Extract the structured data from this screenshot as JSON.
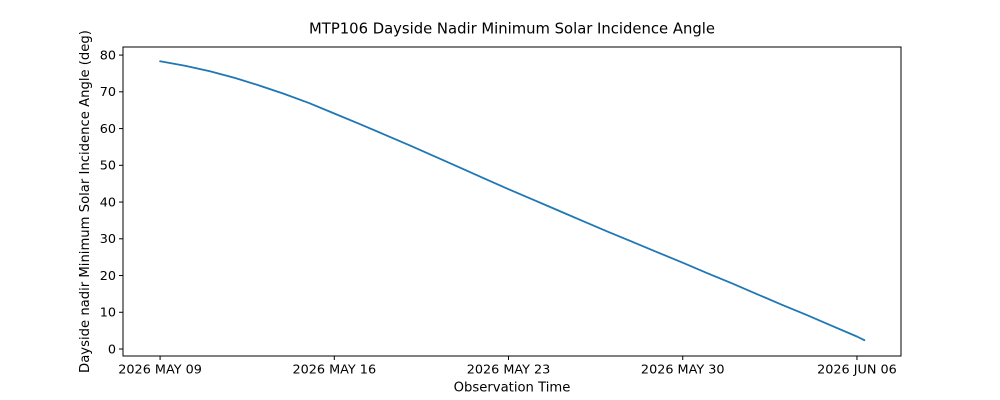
{
  "figure": {
    "background": "#ffffff"
  },
  "chart_data": {
    "type": "line",
    "title": "MTP106 Dayside Nadir Minimum Solar Incidence Angle",
    "xlabel": "Observation Time",
    "ylabel": "Dayside nadir Minimum Solar Incidence Angle (deg)",
    "x_tick_labels": [
      "2026 MAY 09",
      "2026 MAY 16",
      "2026 MAY 23",
      "2026 MAY 30",
      "2026 JUN 06"
    ],
    "x_tick_days": [
      0,
      7,
      14,
      21,
      28
    ],
    "y_ticks": [
      0,
      10,
      20,
      30,
      40,
      50,
      60,
      70,
      80
    ],
    "xlim_days": [
      -1.49,
      29.77
    ],
    "ylim": [
      -1.9,
      82.2
    ],
    "grid": false,
    "legend": false,
    "line_color": "#1f77b4",
    "axis_color": "#000000",
    "series": [
      {
        "points": [
          [
            0,
            78.3
          ],
          [
            1,
            77.1
          ],
          [
            2,
            75.6
          ],
          [
            3,
            73.8
          ],
          [
            4,
            71.7
          ],
          [
            5,
            69.4
          ],
          [
            6,
            66.9
          ],
          [
            7,
            64.1
          ],
          [
            8,
            61.3
          ],
          [
            9,
            58.4
          ],
          [
            10,
            55.5
          ],
          [
            11,
            52.5
          ],
          [
            12,
            49.5
          ],
          [
            13,
            46.5
          ],
          [
            14,
            43.5
          ],
          [
            15,
            40.6
          ],
          [
            16,
            37.7
          ],
          [
            17,
            34.8
          ],
          [
            18,
            31.9
          ],
          [
            19,
            29.1
          ],
          [
            20,
            26.3
          ],
          [
            21,
            23.5
          ],
          [
            22,
            20.6
          ],
          [
            23,
            17.8
          ],
          [
            24,
            14.9
          ],
          [
            25,
            12.0
          ],
          [
            26,
            9.2
          ],
          [
            27,
            6.3
          ],
          [
            28,
            3.4
          ],
          [
            28.3,
            2.4
          ]
        ]
      }
    ]
  }
}
